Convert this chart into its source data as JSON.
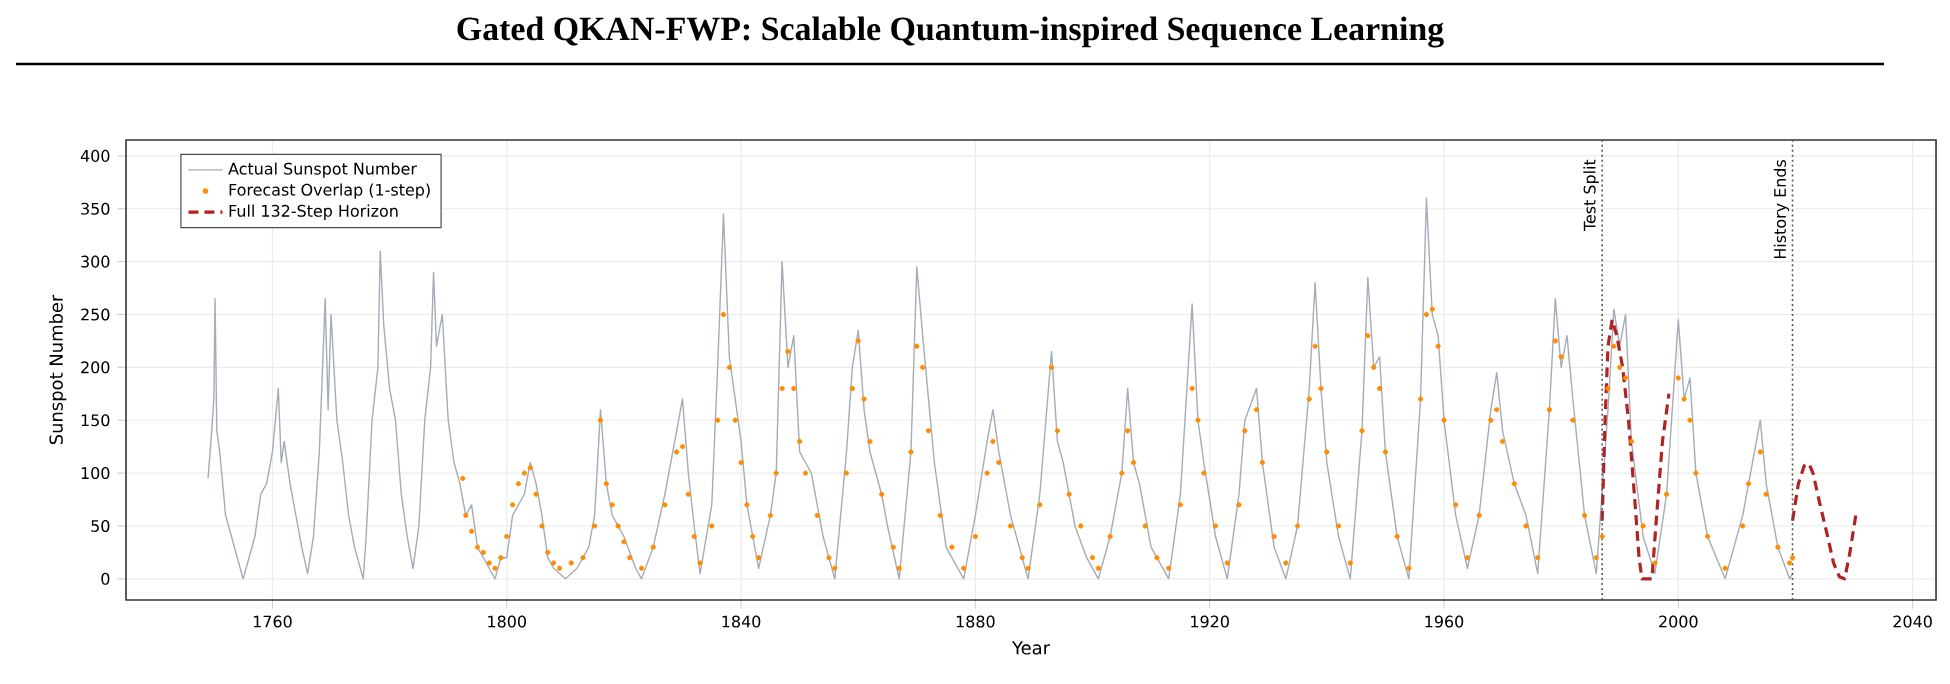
{
  "chart_data": {
    "type": "line",
    "title": "Gated QKAN-FWP: Scalable Quantum-inspired Sequence Learning",
    "xlabel": "Year",
    "ylabel": "Sunspot Number",
    "xlim": [
      1735,
      2044
    ],
    "ylim": [
      -20,
      415
    ],
    "xticks": [
      1760,
      1800,
      1840,
      1880,
      1920,
      1960,
      2000,
      2040
    ],
    "yticks": [
      0,
      50,
      100,
      150,
      200,
      250,
      300,
      350,
      400
    ],
    "grid": true,
    "legend": "top left",
    "series": [
      {
        "name": "Actual Sunspot Number",
        "color": "#a3acb8",
        "marker": "none",
        "line_style": "solid",
        "x": [
          1749.0,
          1749.5,
          1750.0,
          1750.2,
          1750.5,
          1751,
          1752,
          1753,
          1754,
          1755,
          1756,
          1757,
          1758,
          1759,
          1760,
          1761,
          1761.5,
          1762,
          1763,
          1764,
          1765,
          1766,
          1767,
          1768,
          1769,
          1769.5,
          1770,
          1771,
          1772,
          1773,
          1774,
          1775.5,
          1776,
          1777,
          1778,
          1778.4,
          1779,
          1780,
          1781,
          1782,
          1783,
          1784,
          1785,
          1786,
          1787,
          1787.5,
          1788,
          1789,
          1790,
          1791,
          1792,
          1793,
          1794,
          1795,
          1797,
          1798,
          1799,
          1800,
          1801,
          1802,
          1803,
          1804,
          1805,
          1806,
          1807,
          1808,
          1810,
          1812,
          1814,
          1815,
          1816,
          1817,
          1818,
          1819,
          1820,
          1822,
          1823,
          1825,
          1827,
          1829,
          1830,
          1831,
          1832,
          1833,
          1835,
          1836,
          1837,
          1838,
          1839,
          1840,
          1841,
          1842,
          1843,
          1845,
          1846,
          1847,
          1848,
          1849,
          1850,
          1851,
          1852,
          1854,
          1856,
          1858,
          1859,
          1860,
          1861,
          1862,
          1864,
          1865,
          1867,
          1869,
          1870,
          1871,
          1872,
          1873,
          1875,
          1878,
          1880,
          1882,
          1883,
          1884,
          1886,
          1888,
          1889,
          1891,
          1893,
          1894,
          1895,
          1897,
          1899,
          1901,
          1903,
          1905,
          1906,
          1907,
          1908,
          1910,
          1913,
          1915,
          1917,
          1918,
          1919,
          1921,
          1923,
          1925,
          1926,
          1928,
          1929,
          1931,
          1933,
          1935,
          1937,
          1938,
          1939,
          1940,
          1942,
          1944,
          1946,
          1947,
          1948,
          1949,
          1950,
          1952,
          1954,
          1956,
          1957,
          1958,
          1959,
          1960,
          1962,
          1964,
          1966,
          1968,
          1969,
          1970,
          1972,
          1974,
          1976,
          1978,
          1979,
          1980,
          1981,
          1982,
          1984,
          1986,
          1988,
          1989,
          1990,
          1991,
          1992,
          1994,
          1996,
          1998,
          2000,
          2001,
          2002,
          2003,
          2005,
          2008,
          2011,
          2012,
          2014,
          2015,
          2017,
          2019,
          2019.5
        ],
        "values": [
          95,
          130,
          170,
          265,
          140,
          120,
          60,
          40,
          20,
          0,
          20,
          40,
          80,
          90,
          120,
          180,
          110,
          130,
          90,
          60,
          30,
          5,
          40,
          120,
          265,
          160,
          250,
          150,
          110,
          60,
          30,
          0,
          40,
          150,
          200,
          310,
          240,
          180,
          150,
          80,
          40,
          10,
          50,
          150,
          200,
          290,
          220,
          250,
          150,
          110,
          90,
          60,
          70,
          30,
          10,
          0,
          20,
          20,
          60,
          70,
          80,
          110,
          90,
          60,
          20,
          10,
          0,
          10,
          30,
          60,
          160,
          90,
          60,
          50,
          40,
          10,
          0,
          30,
          80,
          140,
          170,
          100,
          50,
          5,
          70,
          200,
          345,
          210,
          170,
          130,
          70,
          40,
          10,
          60,
          100,
          300,
          200,
          230,
          120,
          110,
          100,
          40,
          0,
          120,
          200,
          235,
          160,
          120,
          80,
          50,
          0,
          120,
          295,
          230,
          170,
          110,
          30,
          0,
          60,
          130,
          160,
          120,
          60,
          20,
          0,
          80,
          215,
          130,
          110,
          50,
          20,
          0,
          40,
          100,
          180,
          110,
          90,
          30,
          0,
          80,
          260,
          150,
          110,
          40,
          0,
          80,
          150,
          180,
          110,
          30,
          0,
          50,
          180,
          280,
          180,
          110,
          40,
          0,
          140,
          285,
          200,
          210,
          120,
          40,
          0,
          170,
          360,
          250,
          230,
          150,
          60,
          10,
          60,
          160,
          195,
          140,
          90,
          60,
          5,
          160,
          265,
          200,
          230,
          170,
          60,
          5,
          160,
          255,
          220,
          250,
          130,
          40,
          5,
          80,
          245,
          170,
          190,
          100,
          40,
          0,
          60,
          90,
          150,
          90,
          30,
          0,
          5
        ]
      },
      {
        "name": "Forecast Overlap (1-step)",
        "type": "scatter",
        "color": "#ff8c00",
        "marker": "circle",
        "x": [
          1792.5,
          1793,
          1794,
          1795,
          1796,
          1797,
          1798,
          1799,
          1800,
          1801,
          1802,
          1803,
          1804,
          1805,
          1806,
          1807,
          1808,
          1809,
          1811,
          1813,
          1815,
          1816,
          1817,
          1818,
          1819,
          1820,
          1821,
          1823,
          1825,
          1827,
          1829,
          1830,
          1831,
          1832,
          1833,
          1835,
          1836,
          1837,
          1838,
          1839,
          1840,
          1841,
          1842,
          1843,
          1845,
          1846,
          1847,
          1848,
          1849,
          1850,
          1851,
          1853,
          1855,
          1856,
          1858,
          1859,
          1860,
          1861,
          1862,
          1864,
          1866,
          1867,
          1869,
          1870,
          1871,
          1872,
          1874,
          1876,
          1878,
          1880,
          1882,
          1883,
          1884,
          1886,
          1888,
          1889,
          1891,
          1893,
          1894,
          1896,
          1898,
          1900,
          1901,
          1903,
          1905,
          1906,
          1907,
          1909,
          1911,
          1913,
          1915,
          1917,
          1918,
          1919,
          1921,
          1923,
          1925,
          1926,
          1928,
          1929,
          1931,
          1933,
          1935,
          1937,
          1938,
          1939,
          1940,
          1942,
          1944,
          1946,
          1947,
          1948,
          1949,
          1950,
          1952,
          1954,
          1956,
          1957,
          1958,
          1959,
          1960,
          1962,
          1964,
          1966,
          1968,
          1969,
          1970,
          1972,
          1974,
          1976,
          1978,
          1979,
          1980,
          1982,
          1984,
          1986,
          1987,
          1988,
          1989,
          1990,
          1991,
          1992,
          1994,
          1996,
          1998,
          2000,
          2001,
          2002,
          2003,
          2005,
          2008,
          2011,
          2012,
          2014,
          2015,
          2017,
          2019,
          2019.5
        ],
        "values": [
          95,
          60,
          45,
          30,
          25,
          15,
          10,
          20,
          40,
          70,
          90,
          100,
          105,
          80,
          50,
          25,
          15,
          10,
          15,
          20,
          50,
          150,
          90,
          70,
          50,
          35,
          20,
          10,
          30,
          70,
          120,
          125,
          80,
          40,
          15,
          50,
          150,
          250,
          200,
          150,
          110,
          70,
          40,
          20,
          60,
          100,
          180,
          215,
          180,
          130,
          100,
          60,
          20,
          10,
          100,
          180,
          225,
          170,
          130,
          80,
          30,
          10,
          120,
          220,
          200,
          140,
          60,
          30,
          10,
          40,
          100,
          130,
          110,
          50,
          20,
          10,
          70,
          200,
          140,
          80,
          50,
          20,
          10,
          40,
          100,
          140,
          110,
          50,
          20,
          10,
          70,
          180,
          150,
          100,
          50,
          15,
          70,
          140,
          160,
          110,
          40,
          15,
          50,
          170,
          220,
          180,
          120,
          50,
          15,
          140,
          230,
          200,
          180,
          120,
          40,
          10,
          170,
          250,
          255,
          220,
          150,
          70,
          20,
          60,
          150,
          160,
          130,
          90,
          50,
          20,
          160,
          225,
          210,
          150,
          60,
          20,
          40,
          180,
          220,
          200,
          190,
          130,
          50,
          15,
          80,
          190,
          170,
          150,
          100,
          40,
          10,
          50,
          90,
          120,
          80,
          30,
          15,
          20
        ]
      },
      {
        "name": "Full 132-Step Horizon",
        "color": "#b22222",
        "marker": "none",
        "line_style": "dashed",
        "x": [
          1987,
          1987.5,
          1988,
          1988.7,
          1989.5,
          1990.5,
          1991.5,
          1992.5,
          1993.3,
          1993.8,
          1995.5,
          1996.3,
          1997.3,
          1998.4,
          2010,
          2019.5,
          2020.5,
          2021.5,
          2022.3,
          2023,
          2024,
          2025.5,
          2026.5,
          2027.5,
          2028.4,
          2029.3,
          2030.3
        ],
        "values": [
          55,
          150,
          220,
          245,
          230,
          200,
          150,
          80,
          20,
          0,
          0,
          60,
          130,
          175,
          null,
          55,
          90,
          107,
          109,
          100,
          75,
          40,
          15,
          2,
          0,
          25,
          60
        ]
      }
    ],
    "ref_lines": [
      {
        "axis": "x",
        "value": 1987,
        "label": "Test Split",
        "color": "#555555",
        "line_style": "dotted"
      },
      {
        "axis": "x",
        "value": 2019.5,
        "label": "History Ends",
        "color": "#555555",
        "line_style": "dotted"
      }
    ]
  }
}
